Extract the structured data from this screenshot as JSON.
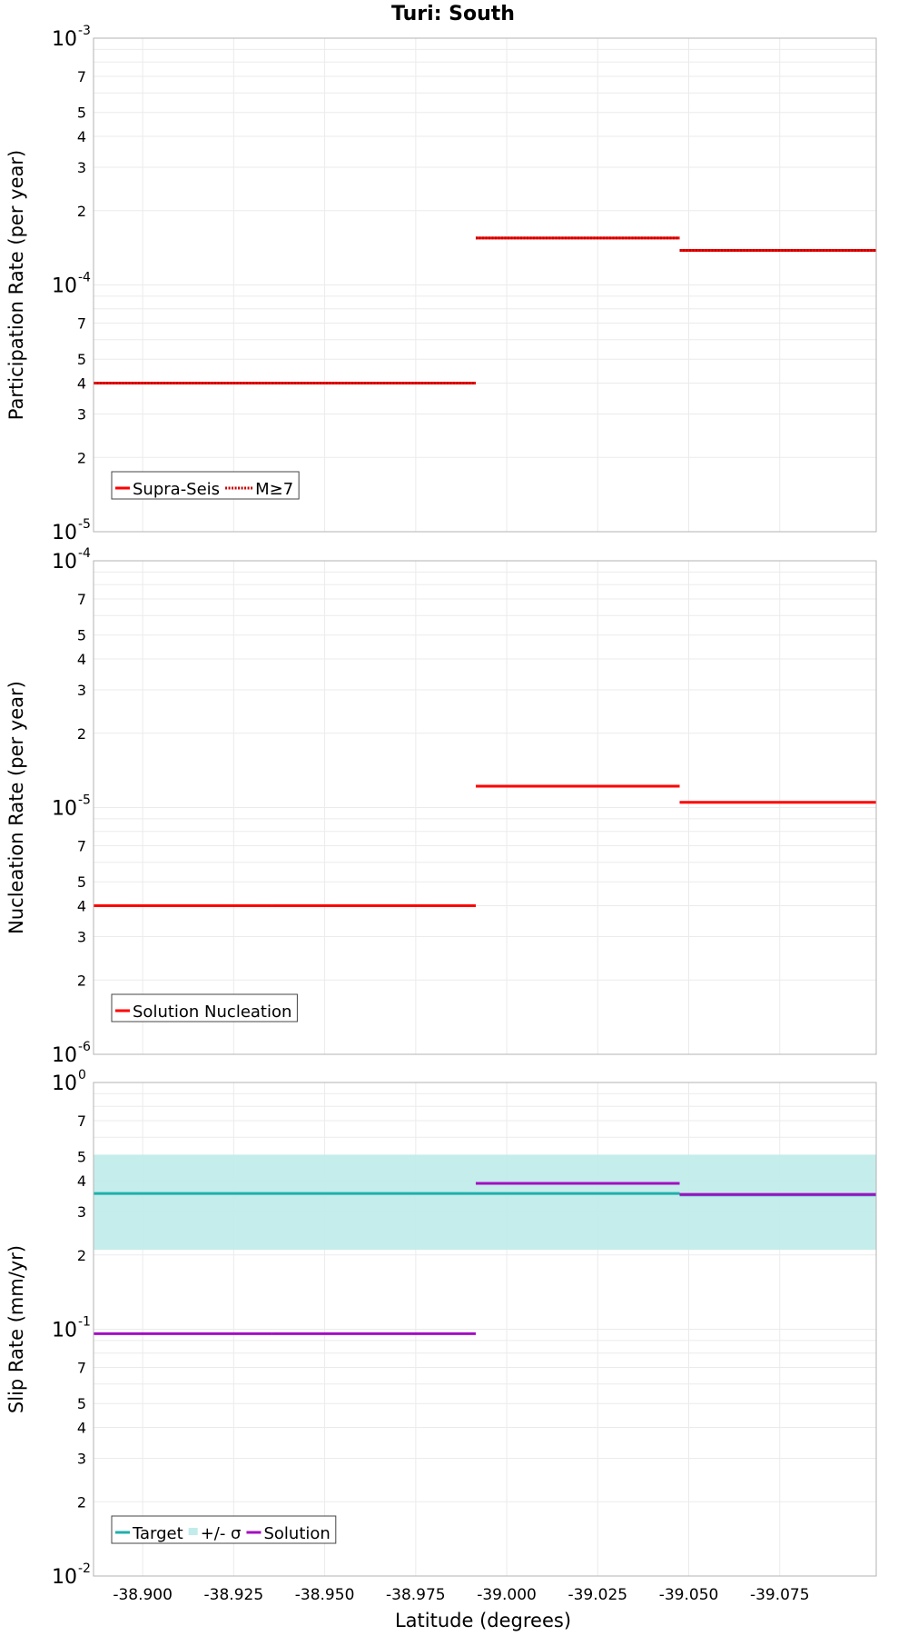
{
  "chart_data": {
    "title": "Turi: South",
    "type": "line",
    "xlabel": "Latitude (degrees)",
    "xlim": [
      -38.8865,
      -39.1015
    ],
    "xticks": [
      "-38.900",
      "-38.925",
      "-38.950",
      "-38.975",
      "-39.000",
      "-39.025",
      "-39.050",
      "-39.075"
    ],
    "xtick_values": [
      -38.9,
      -38.925,
      -38.95,
      -38.975,
      -39.0,
      -39.025,
      -39.05,
      -39.075
    ],
    "panels": [
      {
        "ylabel": "Participation Rate (per year)",
        "yscale": "log",
        "ylim": [
          1e-05,
          0.001
        ],
        "decade_labels": [
          {
            "value": 1e-05,
            "base": "10",
            "exp": "-5"
          },
          {
            "value": 0.0001,
            "base": "10",
            "exp": "-4"
          },
          {
            "value": 0.001,
            "base": "10",
            "exp": "-3"
          }
        ],
        "series": [
          {
            "name": "Supra-Seis",
            "color": "#ff0000",
            "style": "solid",
            "width": 3,
            "segments": [
              {
                "x0": -38.8865,
                "x1": -38.9355,
                "y": 4e-05
              },
              {
                "x0": -38.9355,
                "x1": -38.9915,
                "y": 4e-05
              },
              {
                "x0": -38.9915,
                "x1": -39.0475,
                "y": 0.000155
              },
              {
                "x0": -39.0475,
                "x1": -39.1015,
                "y": 0.000138
              }
            ]
          },
          {
            "name": "M≥7",
            "color": "#ff0000",
            "style": "dotted",
            "width": 3,
            "segments": [
              {
                "x0": -38.8865,
                "x1": -38.9355,
                "y": 4e-05
              },
              {
                "x0": -38.9355,
                "x1": -38.9915,
                "y": 4e-05
              },
              {
                "x0": -38.9915,
                "x1": -39.0475,
                "y": 0.000155
              },
              {
                "x0": -39.0475,
                "x1": -39.1015,
                "y": 0.000138
              }
            ]
          }
        ],
        "legend": [
          {
            "label": "Supra-Seis",
            "color": "#ff0000",
            "style": "solid"
          },
          {
            "label": "M≥7",
            "color": "#ff0000",
            "style": "dotted"
          }
        ]
      },
      {
        "ylabel": "Nucleation Rate (per year)",
        "yscale": "log",
        "ylim": [
          1e-06,
          0.0001
        ],
        "decade_labels": [
          {
            "value": 1e-06,
            "base": "10",
            "exp": "-6"
          },
          {
            "value": 1e-05,
            "base": "10",
            "exp": "-5"
          },
          {
            "value": 0.0001,
            "base": "10",
            "exp": "-4"
          }
        ],
        "series": [
          {
            "name": "Solution Nucleation",
            "color": "#ff0000",
            "style": "solid",
            "width": 3,
            "segments": [
              {
                "x0": -38.8865,
                "x1": -38.9355,
                "y": 4e-06
              },
              {
                "x0": -38.9355,
                "x1": -38.9915,
                "y": 4e-06
              },
              {
                "x0": -38.9915,
                "x1": -39.0475,
                "y": 1.22e-05
              },
              {
                "x0": -39.0475,
                "x1": -39.1015,
                "y": 1.05e-05
              }
            ]
          }
        ],
        "legend": [
          {
            "label": "Solution Nucleation",
            "color": "#ff0000",
            "style": "solid"
          }
        ]
      },
      {
        "ylabel": "Slip Rate (mm/yr)",
        "yscale": "log",
        "ylim": [
          0.01,
          1
        ],
        "decade_labels": [
          {
            "value": 0.01,
            "base": "10",
            "exp": "-2"
          },
          {
            "value": 0.1,
            "base": "10",
            "exp": "-1"
          },
          {
            "value": 1,
            "base": "10",
            "exp": "0"
          }
        ],
        "band": {
          "name": "+/- σ",
          "color": "#c2ecea",
          "x0": -38.8865,
          "x1": -39.1015,
          "y0": 0.21,
          "y1": 0.51
        },
        "series": [
          {
            "name": "Target",
            "color": "#1fb0ac",
            "style": "solid",
            "width": 3,
            "segments": [
              {
                "x0": -38.8865,
                "x1": -39.0475,
                "y": 0.355
              },
              {
                "x0": -39.0475,
                "x1": -39.1015,
                "y": 0.35
              }
            ]
          },
          {
            "name": "Solution",
            "color": "#a30fc2",
            "style": "solid",
            "width": 3,
            "segments": [
              {
                "x0": -38.8865,
                "x1": -38.9355,
                "y": 0.096
              },
              {
                "x0": -38.9355,
                "x1": -38.9915,
                "y": 0.096
              },
              {
                "x0": -38.9915,
                "x1": -39.0475,
                "y": 0.39
              },
              {
                "x0": -39.0475,
                "x1": -39.1015,
                "y": 0.352
              }
            ]
          }
        ],
        "legend": [
          {
            "label": "Target",
            "color": "#1fb0ac",
            "style": "solid"
          },
          {
            "label": "+/- σ",
            "color": "#c2ecea",
            "style": "box"
          },
          {
            "label": "Solution",
            "color": "#a30fc2",
            "style": "solid"
          }
        ]
      }
    ]
  }
}
